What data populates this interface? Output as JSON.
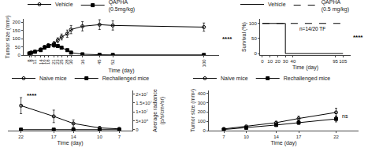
{
  "chart_data": [
    {
      "type": "line",
      "xlabel": "Time (day)",
      "ylabel": "Tumor size (mm²)",
      "x": [
        8,
        9,
        11,
        14,
        16,
        18,
        21,
        23,
        25,
        28,
        30,
        36,
        45,
        52,
        100
      ],
      "series": [
        {
          "name": "Vehicle",
          "color": "black",
          "marker": "circle-open",
          "line_style": "solid",
          "values": [
            10,
            15,
            22,
            35,
            50,
            60,
            70,
            90,
            110,
            130,
            155,
            175,
            185,
            180,
            170
          ],
          "error": [
            2,
            3,
            4,
            6,
            8,
            10,
            12,
            15,
            18,
            22,
            25,
            28,
            30,
            28,
            25
          ]
        },
        {
          "name": "QAPHA\n(0.5mg/kg)",
          "color": "black",
          "marker": "square",
          "line_style": "solid",
          "values": [
            10,
            14,
            20,
            30,
            45,
            55,
            60,
            55,
            45,
            30,
            15,
            5,
            2,
            1,
            1
          ],
          "error": [
            2,
            3,
            4,
            6,
            8,
            10,
            12,
            10,
            8,
            6,
            4,
            2,
            1,
            0.5,
            0.5
          ]
        }
      ],
      "xlim": [
        5,
        108
      ],
      "xticks": [
        8,
        9,
        11,
        14,
        16,
        18,
        21,
        23,
        25,
        28,
        30,
        36,
        45,
        52,
        100
      ],
      "ylim": [
        0,
        220
      ],
      "yticks": [
        0,
        50,
        100,
        150,
        200
      ],
      "annotations": [
        "****"
      ],
      "grid": false,
      "legend": "top"
    },
    {
      "type": "line",
      "xlabel": "Time (day)",
      "ylabel": "Survival (%)",
      "series": [
        {
          "name": "Vehicle",
          "color": "black",
          "marker": "none",
          "line_style": "solid",
          "x": [
            0,
            30,
            30,
            105
          ],
          "values": [
            100,
            100,
            0,
            0
          ]
        },
        {
          "name": "QAPHA\n(0.5 mg/kg)",
          "color": "black",
          "marker": "none",
          "line_style": "dashed",
          "x": [
            0,
            30,
            105
          ],
          "values": [
            100,
            100,
            100
          ]
        }
      ],
      "xlim": [
        -3,
        115
      ],
      "xticks": [
        0,
        10,
        20,
        30,
        40,
        95,
        105
      ],
      "ylim": [
        -5,
        115
      ],
      "yticks": [
        0,
        50,
        100
      ],
      "annotations": [
        "n=14/20 TF",
        "****"
      ],
      "grid": false,
      "legend": "top"
    },
    {
      "type": "line",
      "xlabel": "Time (day)",
      "ylabel": "Average radiance\n(p/s/cm²/sr)",
      "x": [
        22,
        17,
        14,
        10,
        7
      ],
      "series": [
        {
          "name": "Naive mice",
          "color": "black",
          "marker": "circle-open",
          "line_style": "solid",
          "values": [
            13500000,
            7500000,
            3500000,
            1000000,
            500000
          ],
          "error": [
            4500000,
            3500000,
            2000000,
            800000,
            300000
          ]
        },
        {
          "name": "Rechallenged mice",
          "color": "black",
          "marker": "square",
          "line_style": "solid",
          "values": [
            50000,
            50000,
            50000,
            50000,
            50000
          ],
          "error": [
            10000,
            10000,
            10000,
            10000,
            10000
          ]
        }
      ],
      "xlim": [
        24,
        5
      ],
      "xticks": [
        22,
        17,
        14,
        10,
        7
      ],
      "ylim": [
        -500000,
        22000000
      ],
      "yticks": [
        0,
        {
          "value": 5000000,
          "label": "5×10⁶"
        },
        {
          "value": 10000000,
          "label": "1×10⁷"
        },
        {
          "value": 15000000,
          "label": "1.5×10⁷"
        },
        {
          "value": 20000000,
          "label": "2×10⁷"
        }
      ],
      "annotations": [
        "****"
      ],
      "grid": false,
      "legend": "top"
    },
    {
      "type": "line",
      "xlabel": "Time (day)",
      "ylabel": "Tumor size (mm²)",
      "x": [
        7,
        10,
        14,
        17,
        22
      ],
      "series": [
        {
          "name": "Naive mice",
          "color": "black",
          "marker": "circle-open",
          "line_style": "solid",
          "values": [
            18,
            45,
            85,
            130,
            195
          ],
          "error": [
            4,
            8,
            14,
            25,
            45
          ]
        },
        {
          "name": "Rechallenged mice",
          "color": "black",
          "marker": "square",
          "line_style": "solid",
          "values": [
            12,
            30,
            60,
            85,
            125
          ],
          "error": [
            3,
            6,
            11,
            18,
            32
          ]
        }
      ],
      "xlim": [
        5,
        25
      ],
      "xticks": [
        7,
        10,
        14,
        17,
        22
      ],
      "ylim": [
        0,
        430
      ],
      "yticks": [
        0,
        100,
        200,
        300,
        400
      ],
      "annotations": [
        "ns"
      ],
      "grid": false,
      "legend": "top"
    }
  ]
}
